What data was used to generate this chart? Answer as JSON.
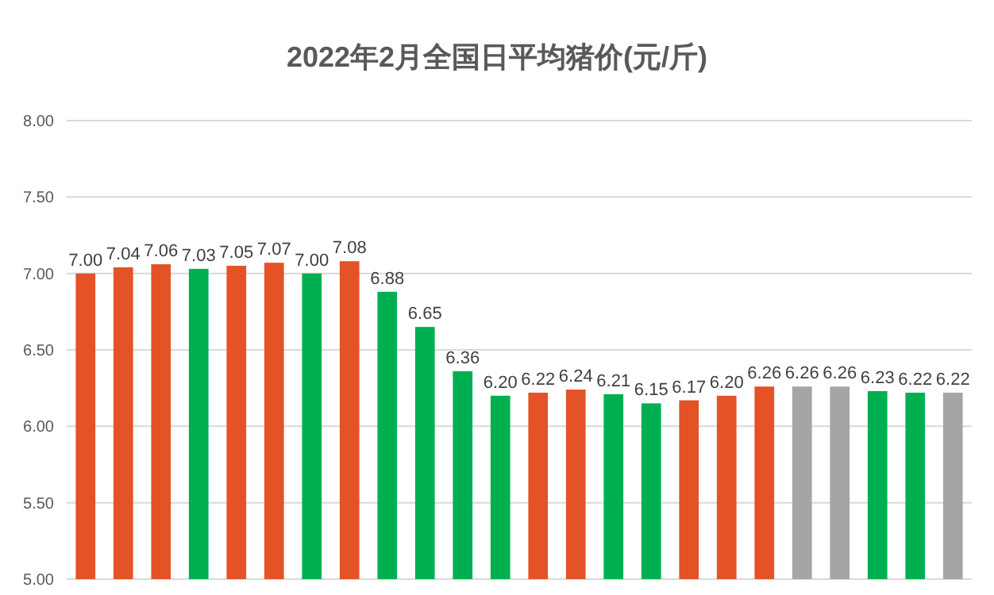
{
  "chart_data": {
    "type": "bar",
    "title": "2022年2月全国日平均猪价(元/斤)",
    "categories": [
      null,
      null,
      null,
      null,
      null,
      null,
      null,
      null,
      null,
      null,
      null,
      null,
      null,
      null,
      null,
      null,
      null,
      null,
      null,
      null,
      null,
      null,
      null,
      null
    ],
    "values": [
      7.0,
      7.04,
      7.06,
      7.03,
      7.05,
      7.07,
      7.0,
      7.08,
      6.88,
      6.65,
      6.36,
      6.2,
      6.22,
      6.24,
      6.21,
      6.15,
      6.17,
      6.2,
      6.26,
      6.26,
      6.26,
      6.23,
      6.22,
      6.22
    ],
    "value_labels": [
      "7.00",
      "7.04",
      "7.06",
      "7.03",
      "7.05",
      "7.07",
      "7.00",
      "7.08",
      "6.88",
      "6.65",
      "6.36",
      "6.20",
      "6.22",
      "6.24",
      "6.21",
      "6.15",
      "6.17",
      "6.20",
      "6.26",
      "6.26",
      "6.26",
      "6.23",
      "6.22",
      "6.22"
    ],
    "colors": [
      "#e35325",
      "#e35325",
      "#e35325",
      "#00b050",
      "#e35325",
      "#e35325",
      "#00b050",
      "#e35325",
      "#00b050",
      "#00b050",
      "#00b050",
      "#00b050",
      "#e35325",
      "#e35325",
      "#00b050",
      "#00b050",
      "#e35325",
      "#e35325",
      "#e35325",
      "#a5a5a5",
      "#a5a5a5",
      "#00b050",
      "#00b050",
      "#a5a5a5"
    ],
    "ylim": [
      5,
      8
    ],
    "yticks": [
      {
        "value": 5,
        "label": "5.00"
      },
      {
        "value": 5.5,
        "label": "5.50"
      },
      {
        "value": 6,
        "label": "6.00"
      },
      {
        "value": 6.5,
        "label": "6.50"
      },
      {
        "value": 7,
        "label": "7.00"
      },
      {
        "value": 7.5,
        "label": "7.50"
      },
      {
        "value": 8,
        "label": "8.00"
      }
    ],
    "grid": "y"
  }
}
